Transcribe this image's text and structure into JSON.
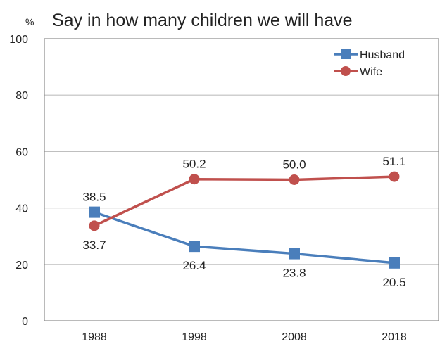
{
  "chart_data": {
    "type": "line",
    "title": "Say in how many children we will have",
    "unit": "%",
    "x": [
      "1988",
      "1998",
      "2008",
      "2018"
    ],
    "ylim": [
      0,
      100
    ],
    "yticks": [
      "0",
      "20",
      "40",
      "60",
      "80",
      "100"
    ],
    "grid": true,
    "legend_position": "top-right",
    "series": [
      {
        "name": "Husband",
        "values": [
          38.5,
          26.4,
          23.8,
          20.5
        ],
        "labels": [
          "38.5",
          "26.4",
          "23.8",
          "20.5"
        ],
        "marker": "square",
        "color": "#4a7ebb"
      },
      {
        "name": "Wife",
        "values": [
          33.7,
          50.2,
          50.0,
          51.1
        ],
        "labels": [
          "33.7",
          "50.2",
          "50.0",
          "51.1"
        ],
        "marker": "circle",
        "color": "#c0504d"
      }
    ]
  }
}
